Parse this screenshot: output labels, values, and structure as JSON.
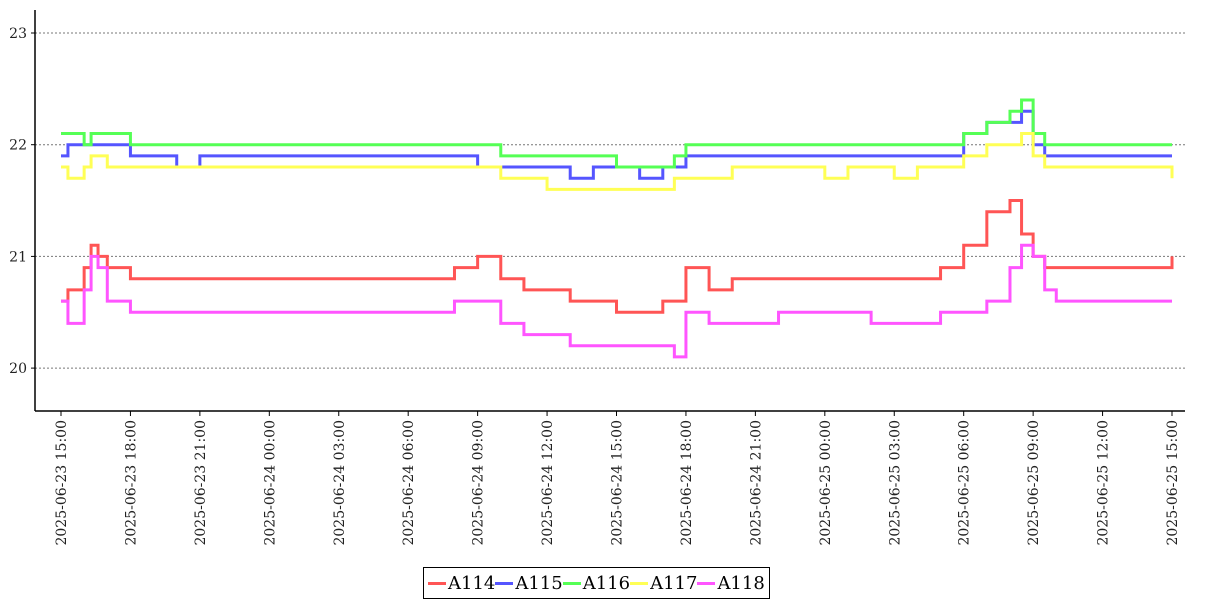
{
  "chart_data": {
    "type": "line",
    "title": "",
    "xlabel": "",
    "ylabel": "",
    "ylim": [
      19.62,
      23.2
    ],
    "yticks": [
      20,
      21,
      22,
      23
    ],
    "grid": "horizontal dotted",
    "legend_position": "bottom-center",
    "x_hours_offset_from": "2025-06-23 15:00",
    "xticks": [
      {
        "h": 0,
        "label": "2025-06-23 15:00"
      },
      {
        "h": 3,
        "label": "2025-06-23 18:00"
      },
      {
        "h": 6,
        "label": "2025-06-23 21:00"
      },
      {
        "h": 9,
        "label": "2025-06-24 00:00"
      },
      {
        "h": 12,
        "label": "2025-06-24 03:00"
      },
      {
        "h": 15,
        "label": "2025-06-24 06:00"
      },
      {
        "h": 18,
        "label": "2025-06-24 09:00"
      },
      {
        "h": 21,
        "label": "2025-06-24 12:00"
      },
      {
        "h": 24,
        "label": "2025-06-24 15:00"
      },
      {
        "h": 27,
        "label": "2025-06-24 18:00"
      },
      {
        "h": 30,
        "label": "2025-06-24 21:00"
      },
      {
        "h": 33,
        "label": "2025-06-25 00:00"
      },
      {
        "h": 36,
        "label": "2025-06-25 03:00"
      },
      {
        "h": 39,
        "label": "2025-06-25 06:00"
      },
      {
        "h": 42,
        "label": "2025-06-25 09:00"
      },
      {
        "h": 45,
        "label": "2025-06-25 12:00"
      },
      {
        "h": 48,
        "label": "2025-06-25 15:00"
      }
    ],
    "xlim": [
      -1.1,
      49.2
    ],
    "x_hours": [
      0,
      0.3,
      1,
      1.3,
      1.6,
      2,
      3,
      4,
      5,
      6,
      7,
      8,
      9,
      10,
      11,
      12,
      13,
      14,
      15,
      16,
      17,
      18,
      19,
      20,
      21,
      22,
      23,
      24,
      25,
      26,
      26.5,
      27,
      28,
      29,
      30,
      31,
      32,
      33,
      34,
      35,
      36,
      37,
      38,
      39,
      40,
      41,
      41.5,
      42,
      42.5,
      43,
      43.5,
      44,
      45,
      46,
      47,
      48
    ],
    "series": [
      {
        "name": "A114",
        "color": "#ff5555",
        "values": [
          20.6,
          20.7,
          20.9,
          21.1,
          21.0,
          20.9,
          20.8,
          20.8,
          20.8,
          20.8,
          20.8,
          20.8,
          20.8,
          20.8,
          20.8,
          20.8,
          20.8,
          20.8,
          20.8,
          20.8,
          20.9,
          21.0,
          20.8,
          20.7,
          20.7,
          20.6,
          20.6,
          20.5,
          20.5,
          20.6,
          20.6,
          20.9,
          20.7,
          20.8,
          20.8,
          20.8,
          20.8,
          20.8,
          20.8,
          20.8,
          20.8,
          20.8,
          20.9,
          21.1,
          21.4,
          21.5,
          21.2,
          21.0,
          20.9,
          20.9,
          20.9,
          20.9,
          20.9,
          20.9,
          20.9,
          21.0
        ]
      },
      {
        "name": "A115",
        "color": "#5555ff",
        "values": [
          21.9,
          22.0,
          22.0,
          22.0,
          22.0,
          22.0,
          21.9,
          21.9,
          21.8,
          21.9,
          21.9,
          21.9,
          21.9,
          21.9,
          21.9,
          21.9,
          21.9,
          21.9,
          21.9,
          21.9,
          21.9,
          21.8,
          21.8,
          21.8,
          21.8,
          21.7,
          21.8,
          21.8,
          21.7,
          21.8,
          21.8,
          21.9,
          21.9,
          21.9,
          21.9,
          21.9,
          21.9,
          21.9,
          21.9,
          21.9,
          21.9,
          21.9,
          21.9,
          22.1,
          22.2,
          22.2,
          22.3,
          22.0,
          21.9,
          21.9,
          21.9,
          21.9,
          21.9,
          21.9,
          21.9,
          21.9
        ]
      },
      {
        "name": "A116",
        "color": "#55ff55",
        "values": [
          22.1,
          22.1,
          22.0,
          22.1,
          22.1,
          22.1,
          22.0,
          22.0,
          22.0,
          22.0,
          22.0,
          22.0,
          22.0,
          22.0,
          22.0,
          22.0,
          22.0,
          22.0,
          22.0,
          22.0,
          22.0,
          22.0,
          21.9,
          21.9,
          21.9,
          21.9,
          21.9,
          21.8,
          21.8,
          21.8,
          21.9,
          22.0,
          22.0,
          22.0,
          22.0,
          22.0,
          22.0,
          22.0,
          22.0,
          22.0,
          22.0,
          22.0,
          22.0,
          22.1,
          22.2,
          22.3,
          22.4,
          22.1,
          22.0,
          22.0,
          22.0,
          22.0,
          22.0,
          22.0,
          22.0,
          22.0
        ]
      },
      {
        "name": "A117",
        "color": "#ffff55",
        "values": [
          21.8,
          21.7,
          21.8,
          21.9,
          21.9,
          21.8,
          21.8,
          21.8,
          21.8,
          21.8,
          21.8,
          21.8,
          21.8,
          21.8,
          21.8,
          21.8,
          21.8,
          21.8,
          21.8,
          21.8,
          21.8,
          21.8,
          21.7,
          21.7,
          21.6,
          21.6,
          21.6,
          21.6,
          21.6,
          21.6,
          21.7,
          21.7,
          21.7,
          21.8,
          21.8,
          21.8,
          21.8,
          21.7,
          21.8,
          21.8,
          21.7,
          21.8,
          21.8,
          21.9,
          22.0,
          22.0,
          22.1,
          21.9,
          21.8,
          21.8,
          21.8,
          21.8,
          21.8,
          21.8,
          21.8,
          21.7
        ]
      },
      {
        "name": "A118",
        "color": "#ff55ff",
        "values": [
          20.6,
          20.4,
          20.7,
          21.0,
          20.9,
          20.6,
          20.5,
          20.5,
          20.5,
          20.5,
          20.5,
          20.5,
          20.5,
          20.5,
          20.5,
          20.5,
          20.5,
          20.5,
          20.5,
          20.5,
          20.6,
          20.6,
          20.4,
          20.3,
          20.3,
          20.2,
          20.2,
          20.2,
          20.2,
          20.2,
          20.1,
          20.5,
          20.4,
          20.4,
          20.4,
          20.5,
          20.5,
          20.5,
          20.5,
          20.4,
          20.4,
          20.4,
          20.5,
          20.5,
          20.6,
          20.9,
          21.1,
          21.0,
          20.7,
          20.6,
          20.6,
          20.6,
          20.6,
          20.6,
          20.6,
          20.6
        ]
      }
    ]
  }
}
